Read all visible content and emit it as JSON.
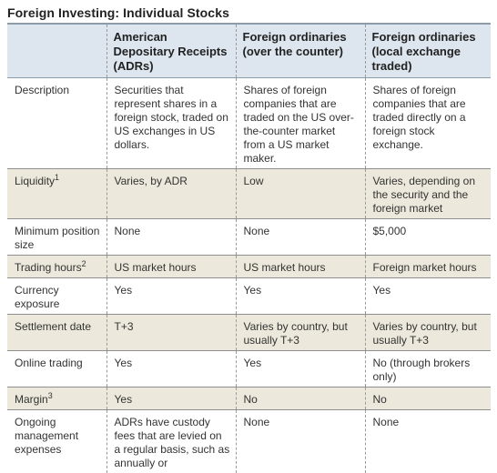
{
  "title": "Foreign Investing: Individual Stocks",
  "columns": [
    "",
    "American Depositary Receipts (ADRs)",
    "Foreign ordinaries (over the counter)",
    "Foreign ordinaries (local exchange traded)"
  ],
  "rows": [
    {
      "label": "Description",
      "sup": "",
      "cells": [
        "Securities that represent shares in a foreign stock, traded on US exchanges in US dollars.",
        "Shares of foreign companies that are traded on the US over-the-counter market from a US market maker.",
        "Shares of foreign companies that are traded directly on a foreign stock exchange."
      ]
    },
    {
      "label": "Liquidity",
      "sup": "1",
      "cells": [
        "Varies, by ADR",
        "Low",
        "Varies, depending on the security and the foreign market"
      ]
    },
    {
      "label": "Minimum position size",
      "sup": "",
      "cells": [
        "None",
        "None",
        "$5,000"
      ]
    },
    {
      "label": "Trading hours",
      "sup": "2",
      "cells": [
        "US market hours",
        "US market hours",
        "Foreign market hours"
      ]
    },
    {
      "label": "Currency exposure",
      "sup": "",
      "cells": [
        "Yes",
        "Yes",
        "Yes"
      ]
    },
    {
      "label": "Settlement date",
      "sup": "",
      "cells": [
        "T+3",
        "Varies by country, but usually T+3",
        "Varies by country, but usually T+3"
      ]
    },
    {
      "label": "Online trading",
      "sup": "",
      "cells": [
        "Yes",
        "Yes",
        "No (through brokers only)"
      ]
    },
    {
      "label": "Margin",
      "sup": "3",
      "cells": [
        "Yes",
        "No",
        "No"
      ]
    },
    {
      "label": "Ongoing management expenses",
      "sup": "",
      "cells": [
        "ADRs have custody fees that are levied on a regular basis, such as annually or",
        "None",
        "None"
      ]
    }
  ]
}
